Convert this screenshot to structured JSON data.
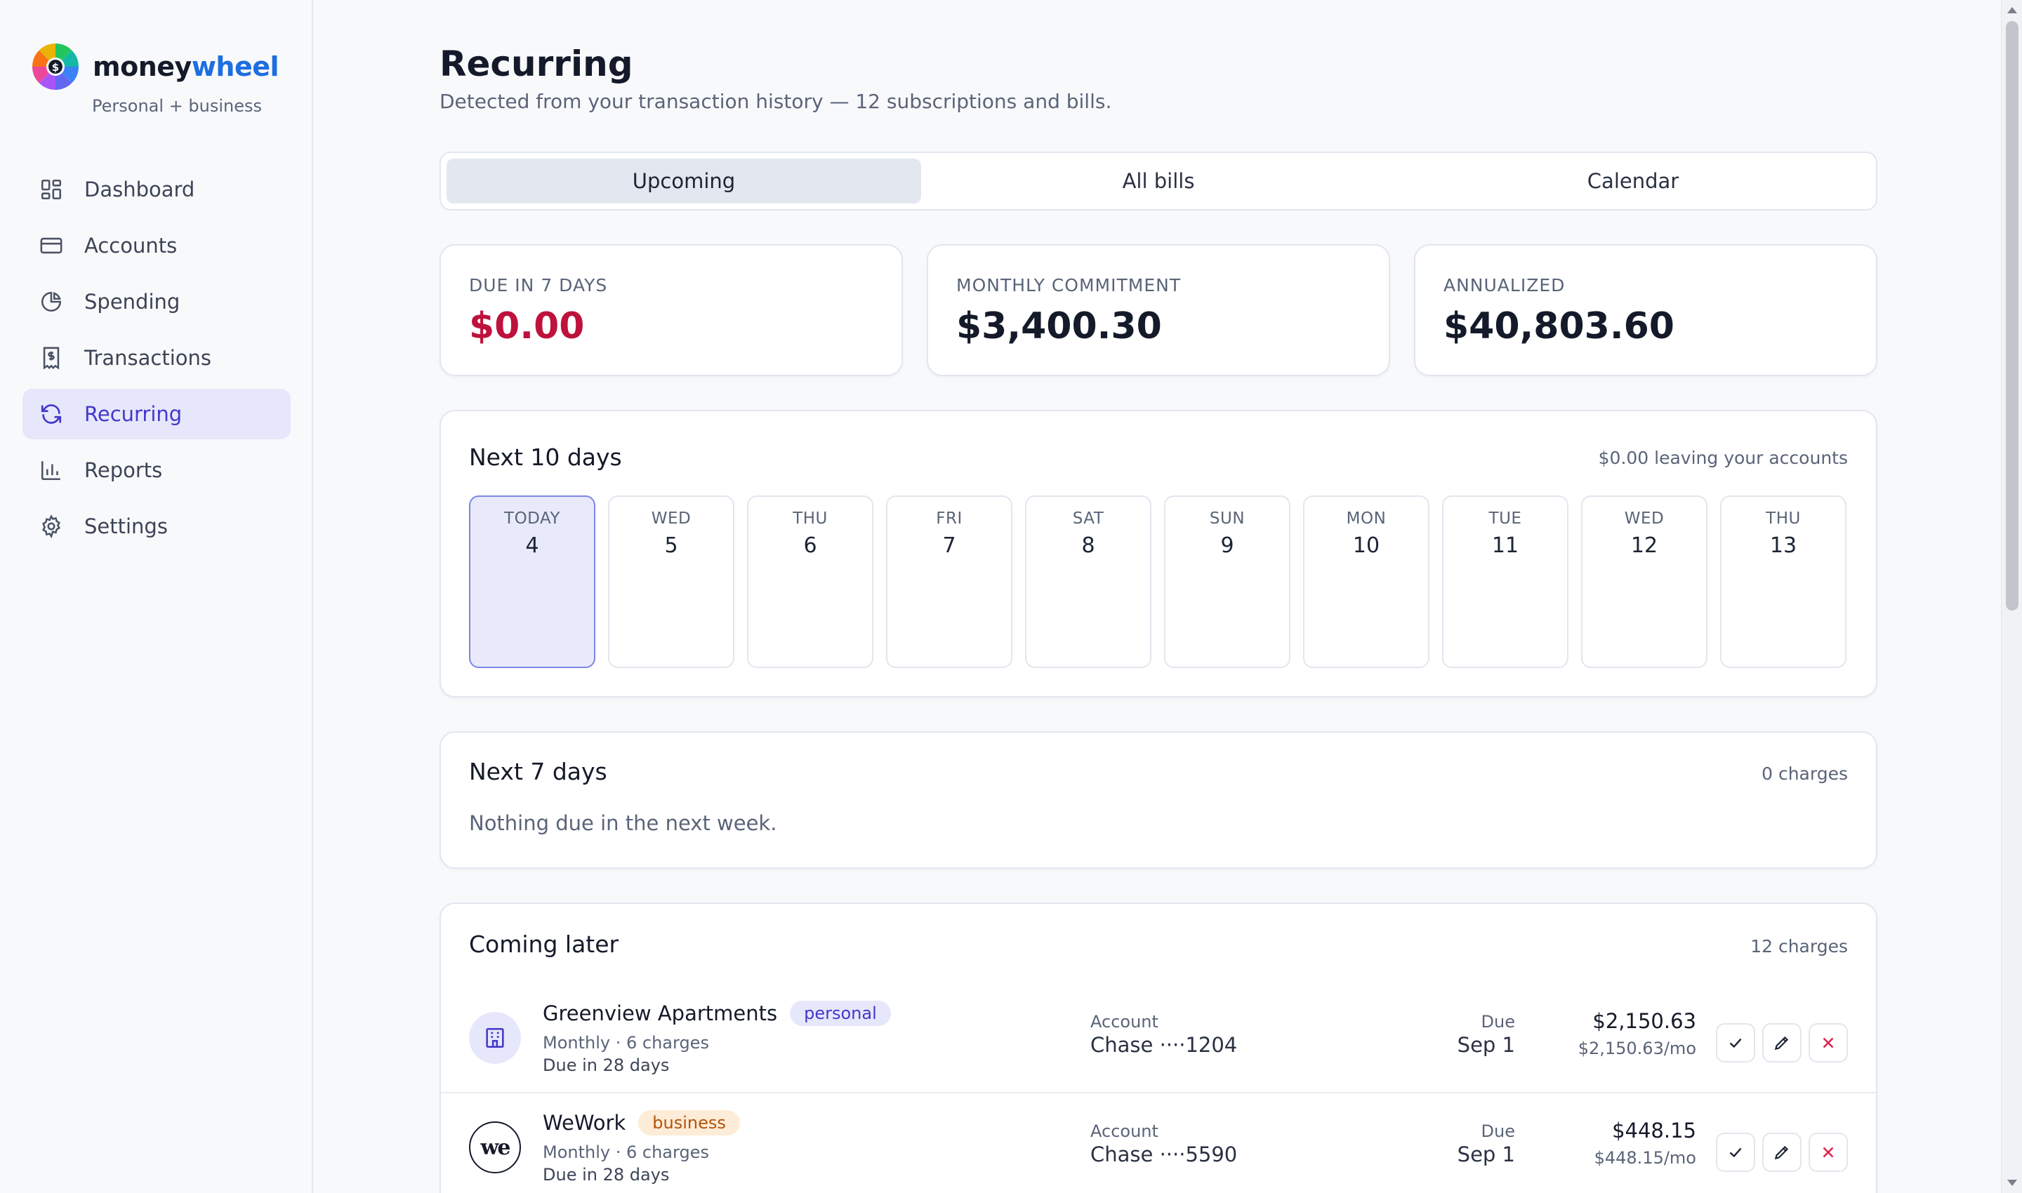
{
  "brand": {
    "name_part1": "money",
    "name_part2": "wheel",
    "subtitle": "Personal + business"
  },
  "nav": [
    {
      "label": "Dashboard",
      "icon": "dashboard-icon"
    },
    {
      "label": "Accounts",
      "icon": "credit-card-icon"
    },
    {
      "label": "Spending",
      "icon": "pie-chart-icon"
    },
    {
      "label": "Transactions",
      "icon": "receipt-icon"
    },
    {
      "label": "Recurring",
      "icon": "refresh-icon",
      "active": true
    },
    {
      "label": "Reports",
      "icon": "bar-chart-icon"
    },
    {
      "label": "Settings",
      "icon": "gear-icon"
    }
  ],
  "page": {
    "title": "Recurring",
    "subtitle": "Detected from your transaction history — 12 subscriptions and bills."
  },
  "tabs": [
    {
      "label": "Upcoming",
      "active": true
    },
    {
      "label": "All bills"
    },
    {
      "label": "Calendar"
    }
  ],
  "stats": [
    {
      "label": "DUE IN 7 DAYS",
      "value": "$0.00",
      "color": "#be123c"
    },
    {
      "label": "MONTHLY COMMITMENT",
      "value": "$3,400.30"
    },
    {
      "label": "ANNUALIZED",
      "value": "$40,803.60"
    }
  ],
  "next10": {
    "title": "Next 10 days",
    "meta": "$0.00 leaving your accounts",
    "days": [
      {
        "name": "TODAY",
        "num": "4",
        "today": true
      },
      {
        "name": "WED",
        "num": "5"
      },
      {
        "name": "THU",
        "num": "6"
      },
      {
        "name": "FRI",
        "num": "7"
      },
      {
        "name": "SAT",
        "num": "8"
      },
      {
        "name": "SUN",
        "num": "9"
      },
      {
        "name": "MON",
        "num": "10"
      },
      {
        "name": "TUE",
        "num": "11"
      },
      {
        "name": "WED",
        "num": "12"
      },
      {
        "name": "THU",
        "num": "13"
      }
    ]
  },
  "next7": {
    "title": "Next 7 days",
    "meta": "0 charges",
    "empty": "Nothing due in the next week."
  },
  "later": {
    "title": "Coming later",
    "meta": "12 charges",
    "account_label": "Account",
    "due_label": "Due",
    "rows": [
      {
        "name": "Greenview Apartments",
        "tag": "personal",
        "freq": "Monthly · 6 charges",
        "due_in": "Due in 28 days",
        "account": "Chase ····1204",
        "due": "Sep 1",
        "amount": "$2,150.63",
        "amount_mo": "$2,150.63/mo",
        "icon": "building-icon"
      },
      {
        "name": "WeWork",
        "tag": "business",
        "freq": "Monthly · 6 charges",
        "due_in": "Due in 28 days",
        "account": "Chase ····5590",
        "due": "Sep 1",
        "amount": "$448.15",
        "amount_mo": "$448.15/mo",
        "icon": "wework-logo",
        "logo_text": "we"
      }
    ]
  }
}
